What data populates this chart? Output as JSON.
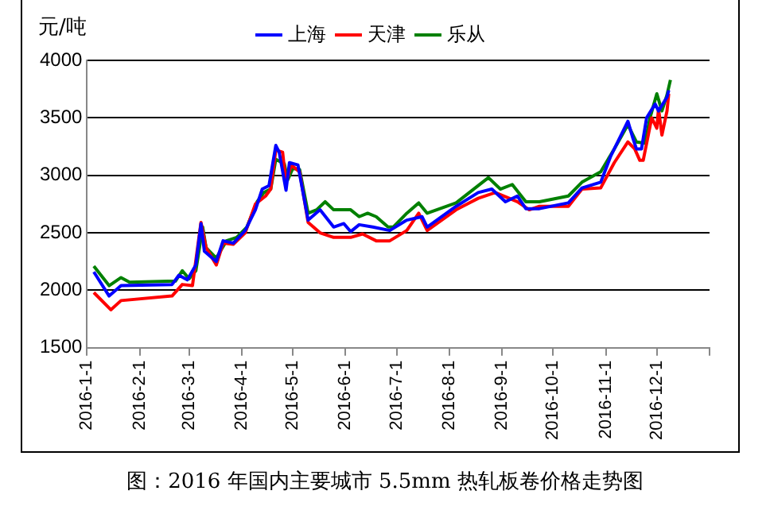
{
  "chart_data": {
    "type": "line",
    "title": "图：2016 年国内主要城市 5.5mm 热轧板卷价格走势图",
    "ylabel": "元/吨",
    "xlim": [
      "2016-01-01",
      "2017-01-01"
    ],
    "xticks": [
      {
        "value": "2016-01-01",
        "label": "2016-1-1"
      },
      {
        "value": "2016-02-01",
        "label": "2016-2-1"
      },
      {
        "value": "2016-03-01",
        "label": "2016-3-1"
      },
      {
        "value": "2016-04-01",
        "label": "2016-4-1"
      },
      {
        "value": "2016-05-01",
        "label": "2016-5-1"
      },
      {
        "value": "2016-06-01",
        "label": "2016-6-1"
      },
      {
        "value": "2016-07-01",
        "label": "2016-7-1"
      },
      {
        "value": "2016-08-01",
        "label": "2016-8-1"
      },
      {
        "value": "2016-09-01",
        "label": "2016-9-1"
      },
      {
        "value": "2016-10-01",
        "label": "2016-10-1"
      },
      {
        "value": "2016-11-01",
        "label": "2016-11-1"
      },
      {
        "value": "2016-12-01",
        "label": "2016-12-1"
      },
      {
        "value": "2017-01-01",
        "label": null
      }
    ],
    "ylim": [
      1500,
      4000
    ],
    "yticks": [
      1500,
      2000,
      2500,
      3000,
      3500,
      4000
    ],
    "grid": "y",
    "legend": "top",
    "marker": "none",
    "line_style": "solid",
    "series": [
      {
        "name": "上海",
        "color": "#0000ff",
        "x": [
          "2016-01-05",
          "2016-01-14",
          "2016-01-21",
          "2016-02-20",
          "2016-02-24",
          "2016-02-29",
          "2016-03-05",
          "2016-03-08",
          "2016-03-10",
          "2016-03-17",
          "2016-03-21",
          "2016-03-27",
          "2016-04-03",
          "2016-04-09",
          "2016-04-13",
          "2016-04-17",
          "2016-04-21",
          "2016-04-23",
          "2016-04-27",
          "2016-04-29",
          "2016-05-04",
          "2016-05-10",
          "2016-05-17",
          "2016-05-25",
          "2016-05-31",
          "2016-06-04",
          "2016-06-09",
          "2016-06-17",
          "2016-06-27",
          "2016-07-07",
          "2016-07-16",
          "2016-07-19",
          "2016-08-05",
          "2016-08-18",
          "2016-08-26",
          "2016-09-03",
          "2016-09-10",
          "2016-09-15",
          "2016-09-23",
          "2016-10-10",
          "2016-10-18",
          "2016-10-29",
          "2016-11-04",
          "2016-11-14",
          "2016-11-17",
          "2016-11-19",
          "2016-11-22",
          "2016-11-25",
          "2016-11-30",
          "2016-12-02",
          "2016-12-07",
          "2016-12-08"
        ],
        "values": [
          2160,
          1950,
          2040,
          2050,
          2130,
          2090,
          2220,
          2580,
          2340,
          2250,
          2430,
          2410,
          2520,
          2700,
          2880,
          2910,
          3260,
          3200,
          2870,
          3110,
          3090,
          2610,
          2700,
          2550,
          2580,
          2510,
          2570,
          2550,
          2520,
          2610,
          2640,
          2550,
          2730,
          2850,
          2880,
          2770,
          2820,
          2710,
          2710,
          2760,
          2890,
          2940,
          3170,
          3470,
          3320,
          3230,
          3230,
          3500,
          3620,
          3560,
          3680,
          3740
        ]
      },
      {
        "name": "天津",
        "color": "#ff0000",
        "x": [
          "2016-01-05",
          "2016-01-15",
          "2016-01-21",
          "2016-02-20",
          "2016-02-26",
          "2016-03-03",
          "2016-03-08",
          "2016-03-11",
          "2016-03-17",
          "2016-03-21",
          "2016-03-27",
          "2016-04-03",
          "2016-04-09",
          "2016-04-15",
          "2016-04-18",
          "2016-04-21",
          "2016-04-25",
          "2016-04-27",
          "2016-04-30",
          "2016-05-05",
          "2016-05-10",
          "2016-05-17",
          "2016-05-25",
          "2016-06-04",
          "2016-06-11",
          "2016-06-19",
          "2016-06-27",
          "2016-07-07",
          "2016-07-14",
          "2016-07-19",
          "2016-08-05",
          "2016-08-18",
          "2016-08-28",
          "2016-09-10",
          "2016-09-17",
          "2016-09-23",
          "2016-10-10",
          "2016-10-18",
          "2016-10-29",
          "2016-11-06",
          "2016-11-14",
          "2016-11-18",
          "2016-11-21",
          "2016-11-23",
          "2016-11-28",
          "2016-12-01",
          "2016-12-02",
          "2016-12-04",
          "2016-12-07",
          "2016-12-08"
        ],
        "values": [
          1980,
          1830,
          1910,
          1950,
          2050,
          2040,
          2590,
          2370,
          2220,
          2410,
          2400,
          2500,
          2750,
          2820,
          2880,
          3220,
          3200,
          2930,
          3090,
          3030,
          2590,
          2500,
          2460,
          2460,
          2490,
          2430,
          2430,
          2520,
          2670,
          2520,
          2700,
          2800,
          2850,
          2770,
          2700,
          2730,
          2730,
          2880,
          2890,
          3110,
          3290,
          3230,
          3130,
          3130,
          3500,
          3410,
          3580,
          3350,
          3560,
          3710
        ]
      },
      {
        "name": "乐从",
        "color": "#008000",
        "x": [
          "2016-01-05",
          "2016-01-14",
          "2016-01-21",
          "2016-01-26",
          "2016-02-22",
          "2016-02-26",
          "2016-03-01",
          "2016-03-05",
          "2016-03-09",
          "2016-03-11",
          "2016-03-17",
          "2016-03-23",
          "2016-03-29",
          "2016-04-04",
          "2016-04-10",
          "2016-04-14",
          "2016-04-18",
          "2016-04-21",
          "2016-04-26",
          "2016-04-28",
          "2016-05-01",
          "2016-05-05",
          "2016-05-10",
          "2016-05-15",
          "2016-05-20",
          "2016-05-25",
          "2016-06-04",
          "2016-06-09",
          "2016-06-14",
          "2016-06-19",
          "2016-06-26",
          "2016-06-29",
          "2016-07-07",
          "2016-07-14",
          "2016-07-19",
          "2016-08-05",
          "2016-08-18",
          "2016-08-24",
          "2016-08-31",
          "2016-09-07",
          "2016-09-15",
          "2016-09-23",
          "2016-10-10",
          "2016-10-18",
          "2016-10-29",
          "2016-11-06",
          "2016-11-14",
          "2016-11-19",
          "2016-11-24",
          "2016-11-27",
          "2016-12-01",
          "2016-12-04",
          "2016-12-07",
          "2016-12-09"
        ],
        "values": [
          2210,
          2040,
          2110,
          2070,
          2080,
          2170,
          2100,
          2170,
          2550,
          2370,
          2280,
          2430,
          2460,
          2550,
          2770,
          2850,
          2880,
          3140,
          3100,
          2960,
          3060,
          3050,
          2670,
          2700,
          2770,
          2700,
          2700,
          2640,
          2670,
          2640,
          2550,
          2550,
          2670,
          2760,
          2670,
          2760,
          2910,
          2980,
          2880,
          2920,
          2770,
          2770,
          2820,
          2940,
          3030,
          3230,
          3440,
          3290,
          3280,
          3500,
          3710,
          3560,
          3700,
          3830
        ]
      }
    ]
  }
}
